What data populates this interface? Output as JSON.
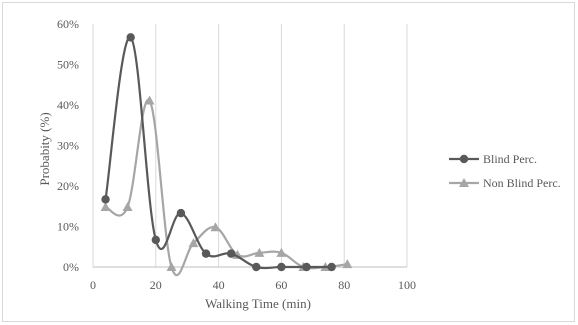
{
  "chart_data": {
    "type": "scatter",
    "xlabel": "Walking Time (min)",
    "ylabel": "Probabity (%)",
    "xlim": [
      0,
      100
    ],
    "ylim": [
      0,
      0.6
    ],
    "x_ticks": [
      "0",
      "20",
      "40",
      "60",
      "80",
      "100"
    ],
    "y_ticks": [
      "0%",
      "10%",
      "20%",
      "30%",
      "40%",
      "50%",
      "60%"
    ],
    "grid": "vertical",
    "legend_position": "right",
    "series": [
      {
        "name": "Blind Perc.",
        "color": "#595959",
        "marker": "circle",
        "x": [
          4,
          12,
          20,
          28,
          36,
          44,
          52,
          60,
          68,
          76
        ],
        "y": [
          0.167,
          0.567,
          0.067,
          0.133,
          0.033,
          0.033,
          0.0,
          0.0,
          0.0,
          0.0
        ]
      },
      {
        "name": "Non Blind Perc.",
        "color": "#a6a6a6",
        "marker": "triangle",
        "x": [
          4,
          11,
          18,
          25,
          32,
          39,
          46,
          53,
          60,
          67,
          74,
          81
        ],
        "y": [
          0.148,
          0.148,
          0.411,
          0.0,
          0.059,
          0.098,
          0.03,
          0.035,
          0.035,
          0.0,
          0.0,
          0.007
        ]
      }
    ]
  }
}
